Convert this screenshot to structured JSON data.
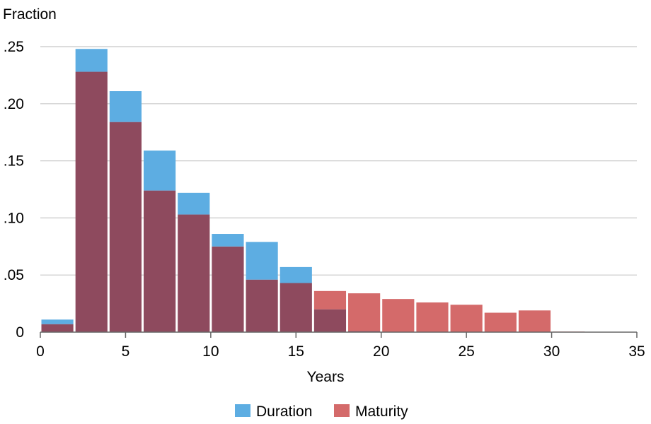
{
  "chart_data": {
    "type": "bar",
    "overlay": true,
    "ylabel": "Fraction",
    "xlabel": "Years",
    "xlim": [
      0,
      35
    ],
    "ylim": [
      0,
      0.25
    ],
    "bin_width": 2,
    "x_ticks": [
      0,
      5,
      10,
      15,
      20,
      25,
      30,
      35
    ],
    "y_ticks": [
      0,
      0.05,
      0.1,
      0.15,
      0.2,
      0.25
    ],
    "y_tick_labels": [
      "0",
      ".05",
      ".10",
      ".15",
      ".20",
      ".25"
    ],
    "grid": "horizontal",
    "legend_position": "bottom",
    "colors": {
      "duration": "#5DADE2",
      "maturity": "#D46A6A",
      "overlap": "#8E4A5E",
      "grid": "#C8C8C8",
      "axis": "#666666"
    },
    "series": [
      {
        "name": "Duration",
        "bin_starts": [
          0,
          2,
          4,
          6,
          8,
          10,
          12,
          14,
          16,
          18
        ],
        "values": [
          0.011,
          0.248,
          0.211,
          0.159,
          0.122,
          0.086,
          0.079,
          0.057,
          0.02,
          0.001
        ]
      },
      {
        "name": "Maturity",
        "bin_starts": [
          0,
          2,
          4,
          6,
          8,
          10,
          12,
          14,
          16,
          18,
          20,
          22,
          24,
          26,
          28,
          30
        ],
        "values": [
          0.007,
          0.228,
          0.184,
          0.124,
          0.103,
          0.075,
          0.046,
          0.043,
          0.036,
          0.034,
          0.029,
          0.026,
          0.024,
          0.017,
          0.019,
          0.0005
        ]
      }
    ]
  }
}
